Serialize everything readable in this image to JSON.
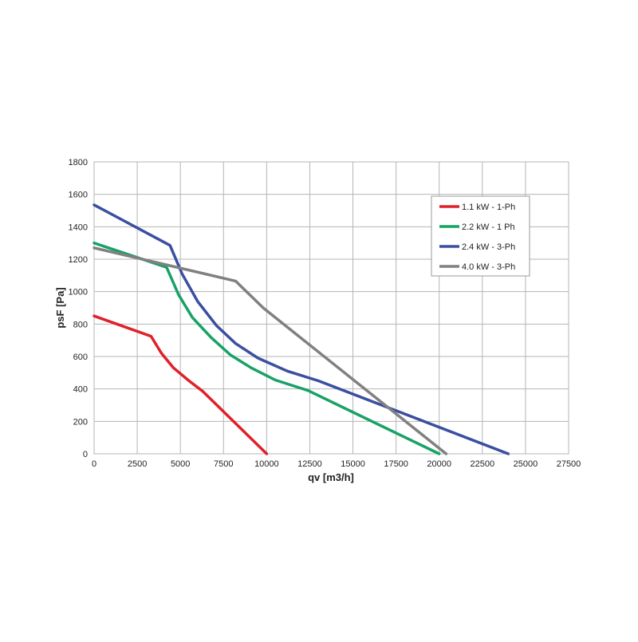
{
  "chart_data": {
    "type": "line",
    "title": "",
    "xlabel": "qv [m3/h]",
    "ylabel": "psF [Pa]",
    "xlim": [
      0,
      27500
    ],
    "ylim": [
      0,
      1800
    ],
    "x_ticks": [
      "0",
      "2500",
      "5000",
      "7500",
      "10000",
      "12500",
      "15000",
      "17500",
      "20000",
      "22500",
      "25000",
      "27500"
    ],
    "y_ticks": [
      "0",
      "200",
      "400",
      "600",
      "800",
      "1000",
      "1200",
      "1400",
      "1600",
      "1800"
    ],
    "grid": true,
    "legend_position": "top-right",
    "series": [
      {
        "name": "1.1 kW - 1-Ph",
        "color": "#e0202a",
        "points": [
          [
            0,
            850
          ],
          [
            3300,
            725
          ],
          [
            3900,
            620
          ],
          [
            4600,
            530
          ],
          [
            5500,
            450
          ],
          [
            6300,
            385
          ],
          [
            10000,
            0
          ]
        ]
      },
      {
        "name": "2.2 kW - 1 Ph",
        "color": "#17a266",
        "points": [
          [
            0,
            1300
          ],
          [
            4200,
            1150
          ],
          [
            4900,
            980
          ],
          [
            5700,
            840
          ],
          [
            6800,
            715
          ],
          [
            7900,
            610
          ],
          [
            9100,
            530
          ],
          [
            10500,
            455
          ],
          [
            12400,
            390
          ],
          [
            20000,
            0
          ]
        ]
      },
      {
        "name": "2.4 kW - 3-Ph",
        "color": "#3a4fa0",
        "points": [
          [
            0,
            1535
          ],
          [
            4400,
            1285
          ],
          [
            5100,
            1110
          ],
          [
            6000,
            940
          ],
          [
            7100,
            790
          ],
          [
            8200,
            680
          ],
          [
            9500,
            590
          ],
          [
            11200,
            510
          ],
          [
            13000,
            450
          ],
          [
            24000,
            0
          ]
        ]
      },
      {
        "name": "4.0 kW - 3-Ph",
        "color": "#808080",
        "points": [
          [
            0,
            1270
          ],
          [
            8200,
            1065
          ],
          [
            9800,
            900
          ],
          [
            20400,
            0
          ]
        ]
      }
    ]
  }
}
